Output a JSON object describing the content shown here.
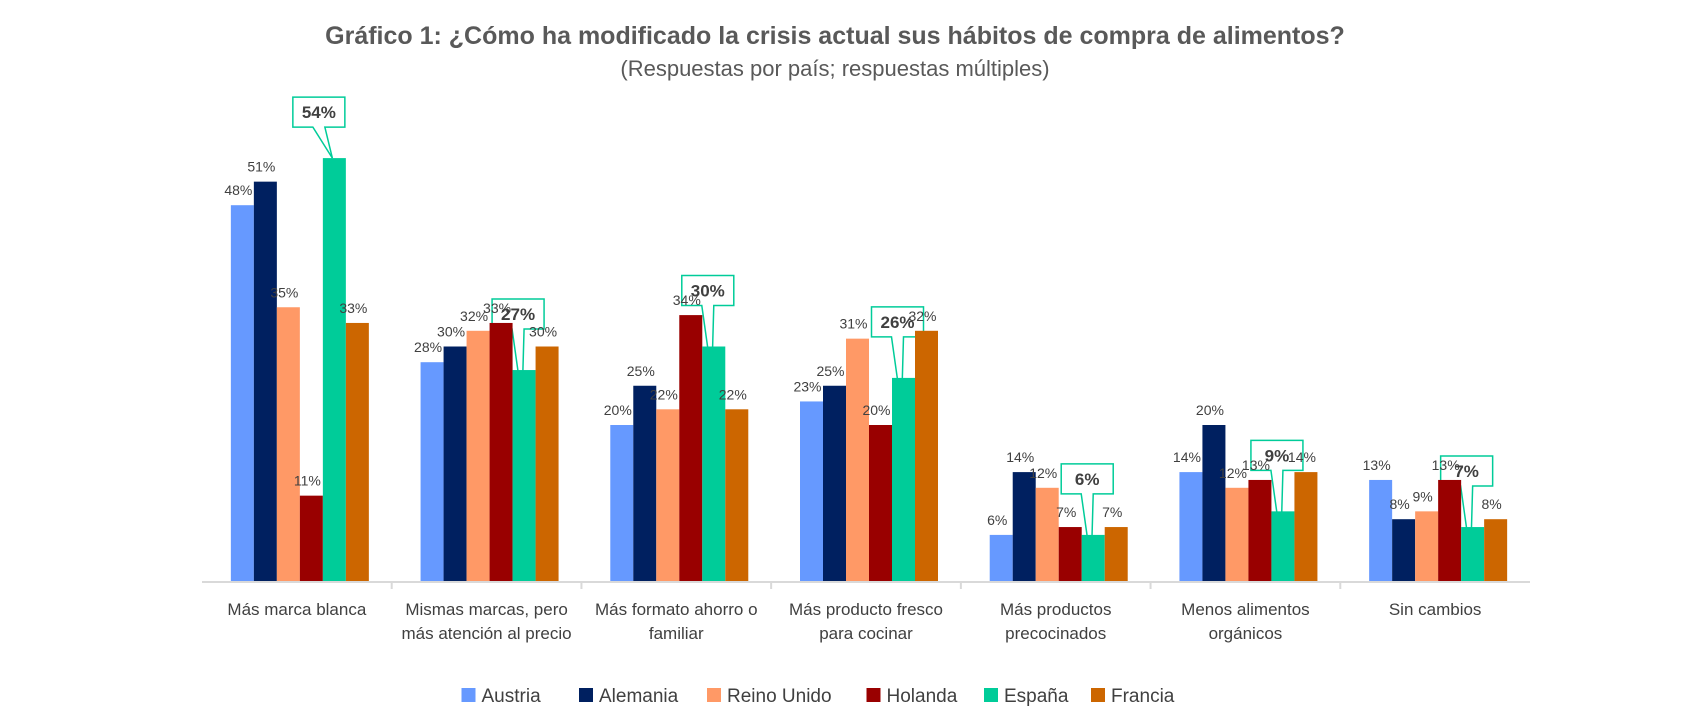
{
  "chart_data": {
    "type": "bar",
    "title": "Gráfico 1: ¿Cómo ha modificado la crisis actual sus hábitos de compra de alimentos?",
    "subtitle": "(Respuestas por país; respuestas múltiples)",
    "categories": [
      [
        "Más marca blanca"
      ],
      [
        "Mismas marcas, pero",
        "más atención al precio"
      ],
      [
        "Más formato ahorro o",
        "familiar"
      ],
      [
        "Más producto fresco",
        "para cocinar"
      ],
      [
        "Más productos",
        "precocinados"
      ],
      [
        "Menos alimentos",
        "orgánicos"
      ],
      [
        "Sin cambios"
      ]
    ],
    "series": [
      {
        "name": "Austria",
        "color": "#6699FF",
        "values": [
          48,
          28,
          20,
          23,
          6,
          14,
          13
        ]
      },
      {
        "name": "Alemania",
        "color": "#002060",
        "values": [
          51,
          30,
          25,
          25,
          14,
          20,
          8
        ]
      },
      {
        "name": "Reino Unido",
        "color": "#FF9966",
        "values": [
          35,
          32,
          22,
          31,
          12,
          12,
          9
        ]
      },
      {
        "name": "Holanda",
        "color": "#990000",
        "values": [
          11,
          33,
          34,
          20,
          7,
          13,
          13
        ]
      },
      {
        "name": "España",
        "color": "#00CC99",
        "values": [
          54,
          27,
          30,
          26,
          6,
          9,
          7
        ],
        "highlight": true
      },
      {
        "name": "Francia",
        "color": "#CC6600",
        "values": [
          33,
          30,
          22,
          32,
          7,
          14,
          8
        ]
      }
    ],
    "value_suffix": "%",
    "ylim": [
      0,
      60
    ],
    "grid": false,
    "legend_position": "bottom",
    "xlabel": "",
    "ylabel": ""
  }
}
